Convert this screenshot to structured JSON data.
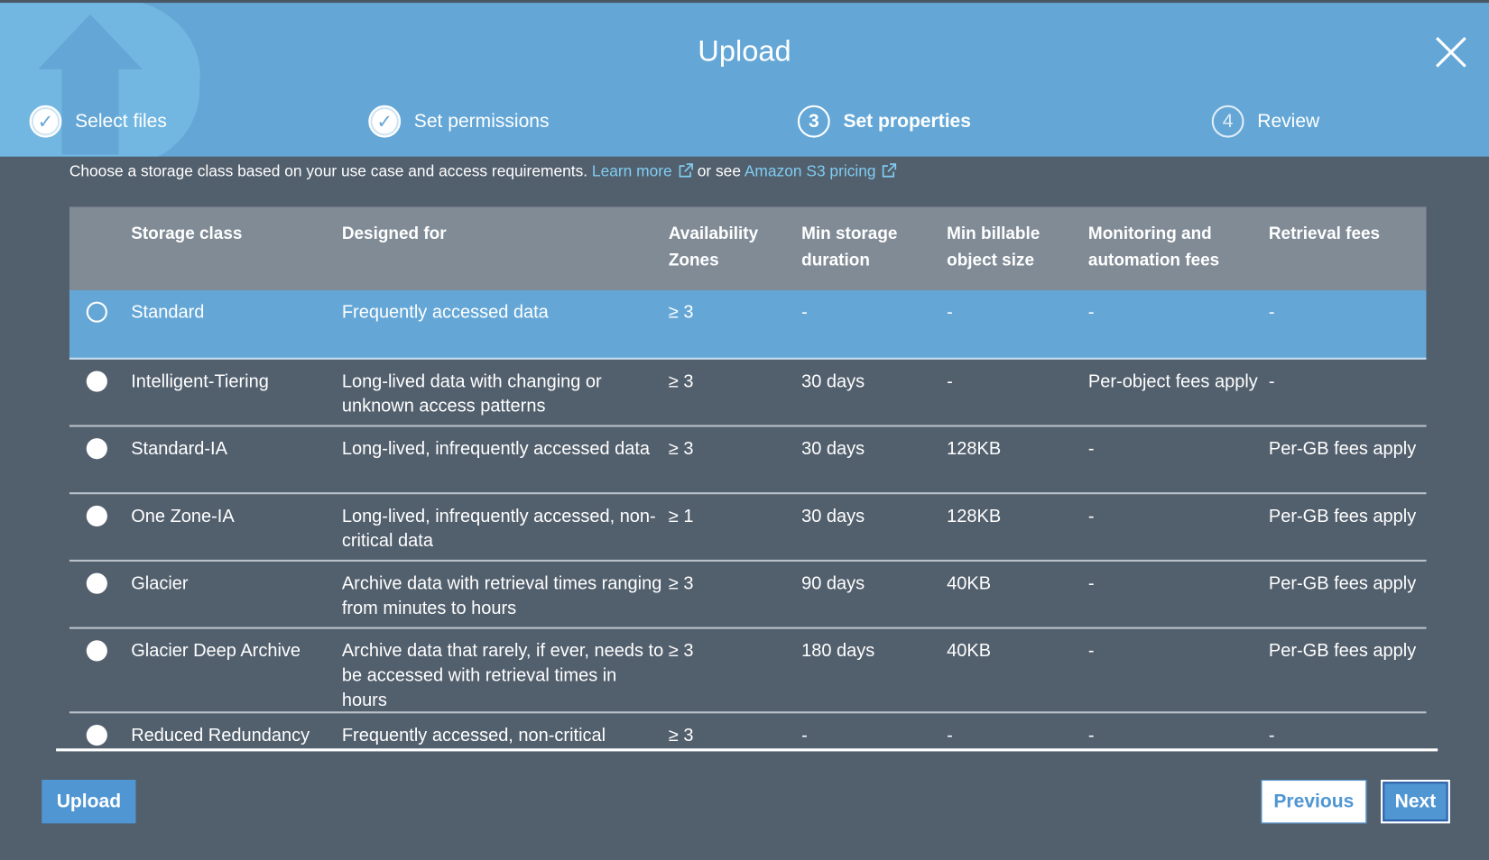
{
  "dialog": {
    "title": "Upload",
    "close_icon": "close-icon"
  },
  "steps": [
    {
      "label": "Select files",
      "state": "done",
      "marker": "✓"
    },
    {
      "label": "Set permissions",
      "state": "done",
      "marker": "✓"
    },
    {
      "label": "Set properties",
      "state": "active",
      "marker": "3"
    },
    {
      "label": "Review",
      "state": "todo",
      "marker": "4"
    }
  ],
  "intro": {
    "text": "Choose a storage class based on your use case and access requirements.",
    "learn_more": "Learn more",
    "or_see": "or see",
    "pricing": "Amazon S3 pricing"
  },
  "table": {
    "headers": [
      "Storage class",
      "Designed for",
      "Availability Zones",
      "Min storage duration",
      "Min billable object size",
      "Monitoring and automation fees",
      "Retrieval fees"
    ],
    "rows": [
      {
        "cells": [
          "Standard",
          "Frequently accessed data",
          "≥ 3",
          "-",
          "-",
          "-",
          "-"
        ],
        "selected": true
      },
      {
        "cells": [
          "Intelligent-Tiering",
          "Long-lived data with changing or unknown access patterns",
          "≥ 3",
          "30 days",
          "-",
          "Per-object fees apply",
          "-"
        ],
        "selected": false
      },
      {
        "cells": [
          "Standard-IA",
          "Long-lived, infrequently accessed data",
          "≥ 3",
          "30 days",
          "128KB",
          "-",
          "Per-GB fees apply"
        ],
        "selected": false
      },
      {
        "cells": [
          "One Zone-IA",
          "Long-lived, infrequently accessed, non-critical data",
          "≥ 1",
          "30 days",
          "128KB",
          "-",
          "Per-GB fees apply"
        ],
        "selected": false
      },
      {
        "cells": [
          "Glacier",
          "Archive data with retrieval times ranging from minutes to hours",
          "≥ 3",
          "90 days",
          "40KB",
          "-",
          "Per-GB fees apply"
        ],
        "selected": false
      },
      {
        "cells": [
          "Glacier Deep Archive",
          "Archive data that rarely, if ever, needs to be accessed with retrieval times in hours",
          "≥ 3",
          "180 days",
          "40KB",
          "-",
          "Per-GB fees apply"
        ],
        "selected": false
      },
      {
        "cells": [
          "Reduced Redundancy",
          "Frequently accessed, non-critical",
          "≥ 3",
          "-",
          "-",
          "-",
          "-"
        ],
        "selected": false
      }
    ]
  },
  "footer": {
    "upload": "Upload",
    "previous": "Previous",
    "next": "Next"
  },
  "colors": {
    "header": "#64a7d7",
    "body": "#525f6d",
    "accent": "#4f96d2",
    "link": "#7fcdf2"
  }
}
